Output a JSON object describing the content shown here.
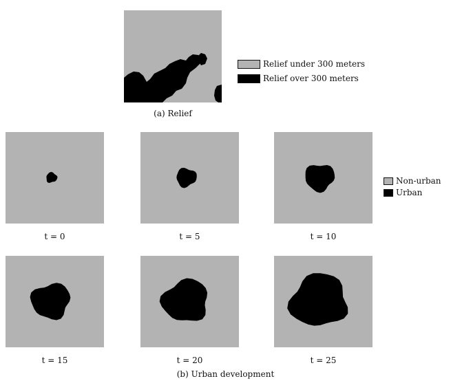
{
  "relief": {
    "caption": "(a) Relief",
    "legend": [
      {
        "label": "Relief under 300 meters",
        "color": "#b3b3b3"
      },
      {
        "label": "Relief over 300 meters",
        "color": "#000000"
      }
    ]
  },
  "urban": {
    "caption": "(b) Urban development",
    "legend": [
      {
        "label": "Non-urban",
        "color": "#b3b3b3"
      },
      {
        "label": "Urban",
        "color": "#000000"
      }
    ],
    "panels": [
      {
        "label": "t = 0",
        "size": 0.12
      },
      {
        "label": "t = 5",
        "size": 0.22
      },
      {
        "label": "t = 10",
        "size": 0.32
      },
      {
        "label": "t = 15",
        "size": 0.42
      },
      {
        "label": "t = 20",
        "size": 0.5
      },
      {
        "label": "t = 25",
        "size": 0.62
      }
    ]
  },
  "colors": {
    "low": "#b3b3b3",
    "high": "#000000"
  }
}
